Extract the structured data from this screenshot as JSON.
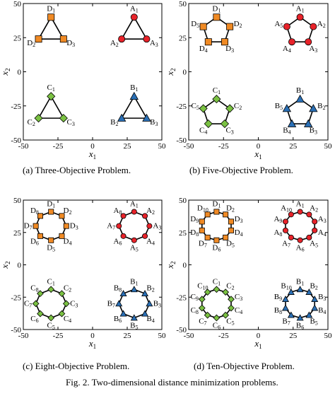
{
  "figure_caption": "Fig. 2.   Two-dimensional distance minimization problems.",
  "colors": {
    "A": "#e8232a",
    "B": "#2a6fb5",
    "C": "#7ac142",
    "D": "#f08a24"
  },
  "chart_data": [
    {
      "type": "scatter",
      "caption": "(a) Three-Objective Problem.",
      "xlabel": "x1",
      "ylabel": "x2",
      "xlim": [
        -50,
        50
      ],
      "ylim": [
        -50,
        50
      ],
      "xticks": [
        "-50",
        "-25",
        "0",
        "25",
        "50"
      ],
      "yticks": [
        "50",
        "25",
        "0",
        "-25",
        "-50"
      ],
      "groups": [
        {
          "letter": "A",
          "marker": "circle",
          "points": [
            {
              "label": "A1",
              "x": 30,
              "y": 40
            },
            {
              "label": "A2",
              "x": 21,
              "y": 24
            },
            {
              "label": "A3",
              "x": 39,
              "y": 24
            }
          ]
        },
        {
          "letter": "B",
          "marker": "triangle",
          "points": [
            {
              "label": "B1",
              "x": 30,
              "y": -18
            },
            {
              "label": "B2",
              "x": 21,
              "y": -34
            },
            {
              "label": "B3",
              "x": 39,
              "y": -34
            }
          ]
        },
        {
          "letter": "C",
          "marker": "diamond",
          "points": [
            {
              "label": "C1",
              "x": -30,
              "y": -18
            },
            {
              "label": "C2",
              "x": -39,
              "y": -34
            },
            {
              "label": "C3",
              "x": -21,
              "y": -34
            }
          ]
        },
        {
          "letter": "D",
          "marker": "square",
          "points": [
            {
              "label": "D1",
              "x": -30,
              "y": 40
            },
            {
              "label": "D2",
              "x": -39,
              "y": 24
            },
            {
              "label": "D3",
              "x": -21,
              "y": 24
            }
          ]
        }
      ]
    },
    {
      "type": "scatter",
      "caption": "(b) Five-Objective Problem.",
      "xlabel": "x1",
      "ylabel": "x2",
      "xlim": [
        -50,
        50
      ],
      "ylim": [
        -50,
        50
      ],
      "xticks": [
        "-50",
        "-25",
        "0",
        "25",
        "50"
      ],
      "yticks": [
        "50",
        "25",
        "0",
        "-25",
        "-50"
      ],
      "groups": [
        {
          "letter": "A",
          "marker": "circle",
          "cx": 30,
          "cy": 30,
          "r": 10,
          "n": 5
        },
        {
          "letter": "B",
          "marker": "triangle",
          "cx": 30,
          "cy": -30,
          "r": 10,
          "n": 5
        },
        {
          "letter": "C",
          "marker": "diamond",
          "cx": -30,
          "cy": -30,
          "r": 10,
          "n": 5
        },
        {
          "letter": "D",
          "marker": "square",
          "cx": -30,
          "cy": 30,
          "r": 10,
          "n": 5
        }
      ]
    },
    {
      "type": "scatter",
      "caption": "(c) Eight-Objective Problem.",
      "xlabel": "x1",
      "ylabel": "x2",
      "xlim": [
        -50,
        50
      ],
      "ylim": [
        -50,
        50
      ],
      "xticks": [
        "-50",
        "-25",
        "0",
        "25",
        "50"
      ],
      "yticks": [
        "50",
        "25",
        "0",
        "-25",
        "-50"
      ],
      "groups": [
        {
          "letter": "A",
          "marker": "circle",
          "cx": 30,
          "cy": 30,
          "r": 11,
          "n": 8
        },
        {
          "letter": "B",
          "marker": "triangle",
          "cx": 30,
          "cy": -30,
          "r": 11,
          "n": 8
        },
        {
          "letter": "C",
          "marker": "diamond",
          "cx": -30,
          "cy": -30,
          "r": 11,
          "n": 8
        },
        {
          "letter": "D",
          "marker": "square",
          "cx": -30,
          "cy": 30,
          "r": 11,
          "n": 8
        }
      ]
    },
    {
      "type": "scatter",
      "caption": "(d) Ten-Objective Problem.",
      "xlabel": "x1",
      "ylabel": "x2",
      "xlim": [
        -50,
        50
      ],
      "ylim": [
        -50,
        50
      ],
      "xticks": [
        "-50",
        "-25",
        "0",
        "25",
        "50"
      ],
      "yticks": [
        "50",
        "25",
        "0",
        "-25",
        "-50"
      ],
      "groups": [
        {
          "letter": "A",
          "marker": "circle",
          "cx": 30,
          "cy": 30,
          "r": 11,
          "n": 10
        },
        {
          "letter": "B",
          "marker": "triangle",
          "cx": 30,
          "cy": -30,
          "r": 11,
          "n": 10
        },
        {
          "letter": "C",
          "marker": "diamond",
          "cx": -30,
          "cy": -30,
          "r": 11,
          "n": 10
        },
        {
          "letter": "D",
          "marker": "square",
          "cx": -30,
          "cy": 30,
          "r": 11,
          "n": 10
        }
      ]
    }
  ]
}
